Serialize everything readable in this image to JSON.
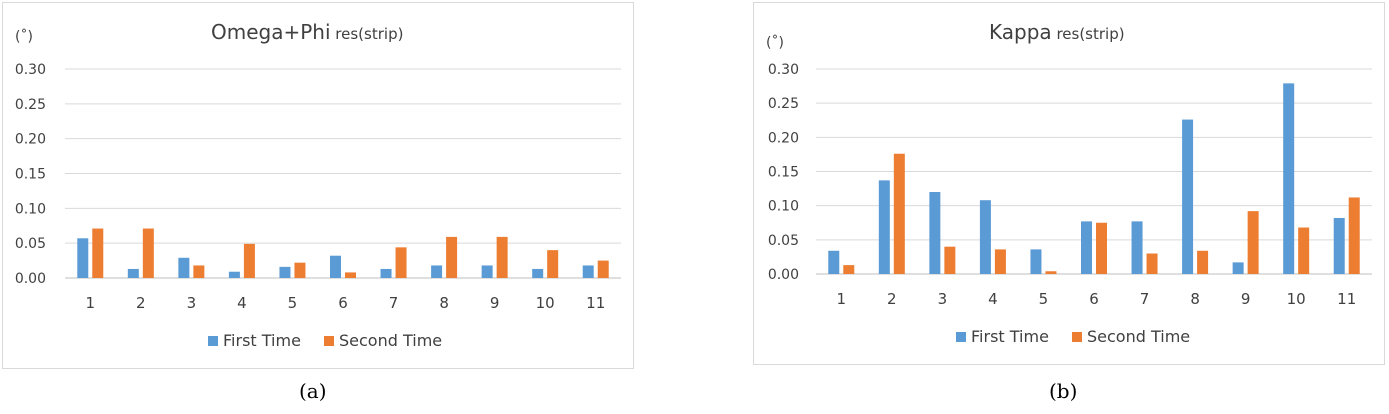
{
  "chart_data": [
    {
      "type": "bar",
      "title": "Omega+Phi",
      "subtitle": "res(strip)",
      "unit_label": "(˚)",
      "categories": [
        "1",
        "2",
        "3",
        "4",
        "5",
        "6",
        "7",
        "8",
        "9",
        "10",
        "11"
      ],
      "series": [
        {
          "name": "First Time",
          "color": "#5B9BD5",
          "values": [
            0.057,
            0.013,
            0.029,
            0.009,
            0.016,
            0.032,
            0.013,
            0.018,
            0.018,
            0.013,
            0.018
          ]
        },
        {
          "name": "Second Time",
          "color": "#ED7D31",
          "values": [
            0.071,
            0.071,
            0.018,
            0.049,
            0.022,
            0.008,
            0.044,
            0.059,
            0.059,
            0.04,
            0.025
          ]
        }
      ],
      "yticks": [
        "0.00",
        "0.05",
        "0.10",
        "0.15",
        "0.20",
        "0.25",
        "0.30"
      ],
      "ylim": [
        0,
        0.3
      ],
      "grid": true,
      "legend": "bottom",
      "caption": "(a)"
    },
    {
      "type": "bar",
      "title": "Kappa",
      "subtitle": "res(strip)",
      "unit_label": "(˚)",
      "categories": [
        "1",
        "2",
        "3",
        "4",
        "5",
        "6",
        "7",
        "8",
        "9",
        "10",
        "11"
      ],
      "series": [
        {
          "name": "First Time",
          "color": "#5B9BD5",
          "values": [
            0.034,
            0.137,
            0.12,
            0.108,
            0.036,
            0.077,
            0.077,
            0.226,
            0.017,
            0.279,
            0.082
          ]
        },
        {
          "name": "Second Time",
          "color": "#ED7D31",
          "values": [
            0.013,
            0.176,
            0.04,
            0.036,
            0.004,
            0.075,
            0.03,
            0.034,
            0.092,
            0.068,
            0.112
          ]
        }
      ],
      "yticks": [
        "0.00",
        "0.05",
        "0.10",
        "0.15",
        "0.20",
        "0.25",
        "0.30"
      ],
      "ylim": [
        0,
        0.3
      ],
      "grid": true,
      "legend": "bottom",
      "caption": "(b)"
    }
  ]
}
